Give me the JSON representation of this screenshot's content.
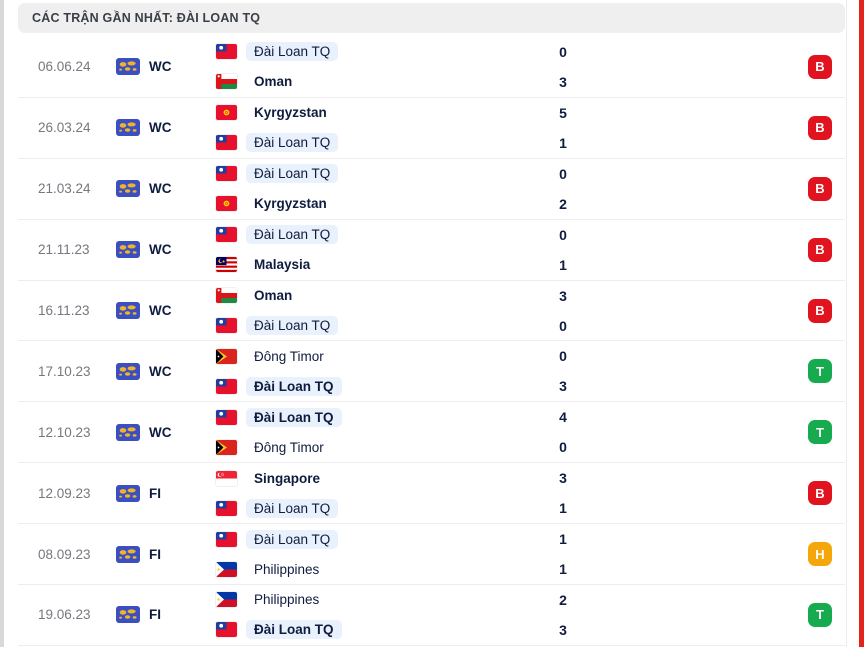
{
  "header": {
    "title": "CÁC TRẬN GẦN NHẤT: ĐÀI LOAN TQ"
  },
  "focus_team": "Đài Loan TQ",
  "results_legend": {
    "B": {
      "label": "B",
      "color": "#e0131e"
    },
    "T": {
      "label": "T",
      "color": "#17ab4f"
    },
    "H": {
      "label": "H",
      "color": "#f5a70a"
    }
  },
  "icons": {
    "competition": "world-icon",
    "flags": [
      "taiwan-flag",
      "oman-flag",
      "kyrgyzstan-flag",
      "malaysia-flag",
      "east-timor-flag",
      "singapore-flag",
      "philippines-flag"
    ]
  },
  "matches": [
    {
      "date": "06.06.24",
      "competition": "WC",
      "result": "B",
      "teams": [
        {
          "name": "Đài Loan TQ",
          "flag": "taiwan",
          "score": "0",
          "win": false,
          "hl": true
        },
        {
          "name": "Oman",
          "flag": "oman",
          "score": "3",
          "win": true,
          "hl": false
        }
      ]
    },
    {
      "date": "26.03.24",
      "competition": "WC",
      "result": "B",
      "teams": [
        {
          "name": "Kyrgyzstan",
          "flag": "kyrgyzstan",
          "score": "5",
          "win": true,
          "hl": false
        },
        {
          "name": "Đài Loan TQ",
          "flag": "taiwan",
          "score": "1",
          "win": false,
          "hl": true
        }
      ]
    },
    {
      "date": "21.03.24",
      "competition": "WC",
      "result": "B",
      "teams": [
        {
          "name": "Đài Loan TQ",
          "flag": "taiwan",
          "score": "0",
          "win": false,
          "hl": true
        },
        {
          "name": "Kyrgyzstan",
          "flag": "kyrgyzstan",
          "score": "2",
          "win": true,
          "hl": false
        }
      ]
    },
    {
      "date": "21.11.23",
      "competition": "WC",
      "result": "B",
      "teams": [
        {
          "name": "Đài Loan TQ",
          "flag": "taiwan",
          "score": "0",
          "win": false,
          "hl": true
        },
        {
          "name": "Malaysia",
          "flag": "malaysia",
          "score": "1",
          "win": true,
          "hl": false
        }
      ]
    },
    {
      "date": "16.11.23",
      "competition": "WC",
      "result": "B",
      "teams": [
        {
          "name": "Oman",
          "flag": "oman",
          "score": "3",
          "win": true,
          "hl": false
        },
        {
          "name": "Đài Loan TQ",
          "flag": "taiwan",
          "score": "0",
          "win": false,
          "hl": true
        }
      ]
    },
    {
      "date": "17.10.23",
      "competition": "WC",
      "result": "T",
      "teams": [
        {
          "name": "Đông Timor",
          "flag": "east-timor",
          "score": "0",
          "win": false,
          "hl": false
        },
        {
          "name": "Đài Loan TQ",
          "flag": "taiwan",
          "score": "3",
          "win": true,
          "hl": true
        }
      ]
    },
    {
      "date": "12.10.23",
      "competition": "WC",
      "result": "T",
      "teams": [
        {
          "name": "Đài Loan TQ",
          "flag": "taiwan",
          "score": "4",
          "win": true,
          "hl": true
        },
        {
          "name": "Đông Timor",
          "flag": "east-timor",
          "score": "0",
          "win": false,
          "hl": false
        }
      ]
    },
    {
      "date": "12.09.23",
      "competition": "FI",
      "result": "B",
      "teams": [
        {
          "name": "Singapore",
          "flag": "singapore",
          "score": "3",
          "win": true,
          "hl": false
        },
        {
          "name": "Đài Loan TQ",
          "flag": "taiwan",
          "score": "1",
          "win": false,
          "hl": true
        }
      ]
    },
    {
      "date": "08.09.23",
      "competition": "FI",
      "result": "H",
      "teams": [
        {
          "name": "Đài Loan TQ",
          "flag": "taiwan",
          "score": "1",
          "win": false,
          "hl": true
        },
        {
          "name": "Philippines",
          "flag": "philippines",
          "score": "1",
          "win": false,
          "hl": false
        }
      ]
    },
    {
      "date": "19.06.23",
      "competition": "FI",
      "result": "T",
      "teams": [
        {
          "name": "Philippines",
          "flag": "philippines",
          "score": "2",
          "win": false,
          "hl": false
        },
        {
          "name": "Đài Loan TQ",
          "flag": "taiwan",
          "score": "3",
          "win": true,
          "hl": true
        }
      ]
    }
  ]
}
